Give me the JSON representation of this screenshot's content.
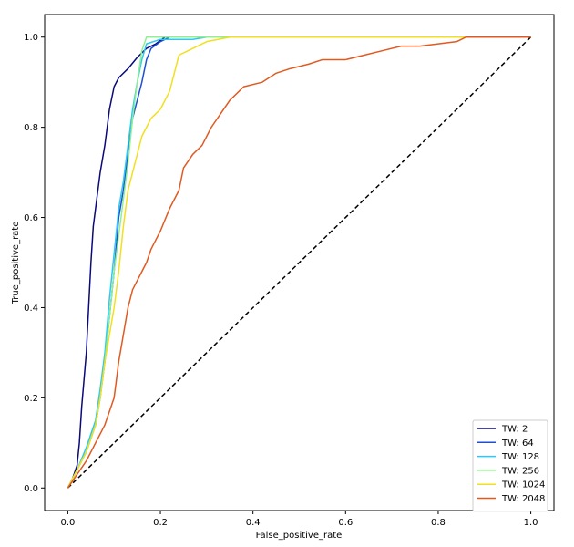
{
  "chart_data": {
    "type": "line",
    "title": "",
    "xlabel": "False_positive_rate",
    "ylabel": "True_positive_rate",
    "xlim": [
      -0.05,
      1.05
    ],
    "ylim": [
      -0.05,
      1.05
    ],
    "xticks": [
      "0.0",
      "0.2",
      "0.4",
      "0.6",
      "0.8",
      "1.0"
    ],
    "yticks": [
      "0.0",
      "0.2",
      "0.4",
      "0.6",
      "0.8",
      "1.0"
    ],
    "grid": false,
    "legend_position": "bottom-right",
    "series": [
      {
        "name": "TW: 2",
        "color": "#0a0a7a",
        "points": [
          [
            0,
            0
          ],
          [
            0.01,
            0.02
          ],
          [
            0.02,
            0.05
          ],
          [
            0.025,
            0.1
          ],
          [
            0.03,
            0.18
          ],
          [
            0.035,
            0.24
          ],
          [
            0.04,
            0.3
          ],
          [
            0.045,
            0.4
          ],
          [
            0.05,
            0.5
          ],
          [
            0.055,
            0.58
          ],
          [
            0.06,
            0.62
          ],
          [
            0.07,
            0.7
          ],
          [
            0.08,
            0.76
          ],
          [
            0.09,
            0.84
          ],
          [
            0.1,
            0.89
          ],
          [
            0.11,
            0.91
          ],
          [
            0.13,
            0.93
          ],
          [
            0.15,
            0.955
          ],
          [
            0.17,
            0.975
          ],
          [
            0.19,
            0.985
          ],
          [
            0.21,
            1.0
          ],
          [
            1,
            1
          ]
        ]
      },
      {
        "name": "TW: 64",
        "color": "#1f4fd4",
        "points": [
          [
            0,
            0
          ],
          [
            0.02,
            0.04
          ],
          [
            0.04,
            0.08
          ],
          [
            0.06,
            0.14
          ],
          [
            0.07,
            0.2
          ],
          [
            0.08,
            0.28
          ],
          [
            0.09,
            0.38
          ],
          [
            0.1,
            0.48
          ],
          [
            0.11,
            0.6
          ],
          [
            0.12,
            0.66
          ],
          [
            0.13,
            0.74
          ],
          [
            0.14,
            0.82
          ],
          [
            0.15,
            0.86
          ],
          [
            0.16,
            0.9
          ],
          [
            0.17,
            0.95
          ],
          [
            0.18,
            0.975
          ],
          [
            0.2,
            0.99
          ],
          [
            0.22,
            1.0
          ],
          [
            1,
            1
          ]
        ]
      },
      {
        "name": "TW: 128",
        "color": "#2ec8f0",
        "points": [
          [
            0,
            0
          ],
          [
            0.02,
            0.04
          ],
          [
            0.04,
            0.09
          ],
          [
            0.06,
            0.15
          ],
          [
            0.07,
            0.22
          ],
          [
            0.08,
            0.3
          ],
          [
            0.09,
            0.42
          ],
          [
            0.1,
            0.52
          ],
          [
            0.11,
            0.62
          ],
          [
            0.12,
            0.68
          ],
          [
            0.13,
            0.76
          ],
          [
            0.14,
            0.84
          ],
          [
            0.15,
            0.9
          ],
          [
            0.16,
            0.95
          ],
          [
            0.17,
            0.985
          ],
          [
            0.2,
            0.995
          ],
          [
            0.22,
            0.995
          ],
          [
            0.27,
            0.995
          ],
          [
            0.3,
            1.0
          ],
          [
            1,
            1
          ]
        ]
      },
      {
        "name": "TW: 256",
        "color": "#90f090",
        "points": [
          [
            0,
            0
          ],
          [
            0.02,
            0.04
          ],
          [
            0.04,
            0.08
          ],
          [
            0.06,
            0.14
          ],
          [
            0.07,
            0.2
          ],
          [
            0.08,
            0.28
          ],
          [
            0.09,
            0.38
          ],
          [
            0.1,
            0.48
          ],
          [
            0.11,
            0.56
          ],
          [
            0.12,
            0.64
          ],
          [
            0.13,
            0.72
          ],
          [
            0.14,
            0.82
          ],
          [
            0.15,
            0.9
          ],
          [
            0.16,
            0.97
          ],
          [
            0.17,
            1.0
          ],
          [
            0.36,
            1.0
          ],
          [
            1,
            1
          ]
        ]
      },
      {
        "name": "TW: 1024",
        "color": "#f0e020",
        "points": [
          [
            0,
            0
          ],
          [
            0.02,
            0.04
          ],
          [
            0.04,
            0.08
          ],
          [
            0.06,
            0.14
          ],
          [
            0.07,
            0.2
          ],
          [
            0.08,
            0.28
          ],
          [
            0.09,
            0.34
          ],
          [
            0.1,
            0.4
          ],
          [
            0.11,
            0.48
          ],
          [
            0.12,
            0.58
          ],
          [
            0.13,
            0.66
          ],
          [
            0.14,
            0.7
          ],
          [
            0.15,
            0.74
          ],
          [
            0.16,
            0.78
          ],
          [
            0.18,
            0.82
          ],
          [
            0.2,
            0.84
          ],
          [
            0.22,
            0.88
          ],
          [
            0.24,
            0.96
          ],
          [
            0.26,
            0.97
          ],
          [
            0.3,
            0.99
          ],
          [
            0.35,
            1.0
          ],
          [
            1,
            1
          ]
        ]
      },
      {
        "name": "TW: 2048",
        "color": "#e05a20",
        "points": [
          [
            0,
            0
          ],
          [
            0.02,
            0.03
          ],
          [
            0.04,
            0.06
          ],
          [
            0.06,
            0.1
          ],
          [
            0.08,
            0.14
          ],
          [
            0.1,
            0.2
          ],
          [
            0.11,
            0.28
          ],
          [
            0.12,
            0.34
          ],
          [
            0.13,
            0.4
          ],
          [
            0.14,
            0.44
          ],
          [
            0.15,
            0.46
          ],
          [
            0.16,
            0.48
          ],
          [
            0.17,
            0.5
          ],
          [
            0.18,
            0.53
          ],
          [
            0.2,
            0.57
          ],
          [
            0.22,
            0.62
          ],
          [
            0.24,
            0.66
          ],
          [
            0.25,
            0.71
          ],
          [
            0.27,
            0.74
          ],
          [
            0.29,
            0.76
          ],
          [
            0.31,
            0.8
          ],
          [
            0.33,
            0.83
          ],
          [
            0.35,
            0.86
          ],
          [
            0.38,
            0.89
          ],
          [
            0.42,
            0.9
          ],
          [
            0.45,
            0.92
          ],
          [
            0.48,
            0.93
          ],
          [
            0.52,
            0.94
          ],
          [
            0.55,
            0.95
          ],
          [
            0.6,
            0.95
          ],
          [
            0.64,
            0.96
          ],
          [
            0.68,
            0.97
          ],
          [
            0.72,
            0.98
          ],
          [
            0.76,
            0.98
          ],
          [
            0.8,
            0.985
          ],
          [
            0.84,
            0.99
          ],
          [
            0.86,
            1.0
          ],
          [
            1,
            1
          ]
        ]
      }
    ],
    "reference_line": {
      "points": [
        [
          0,
          0
        ],
        [
          1,
          1
        ]
      ],
      "color": "#000000",
      "style": "dashed"
    }
  }
}
